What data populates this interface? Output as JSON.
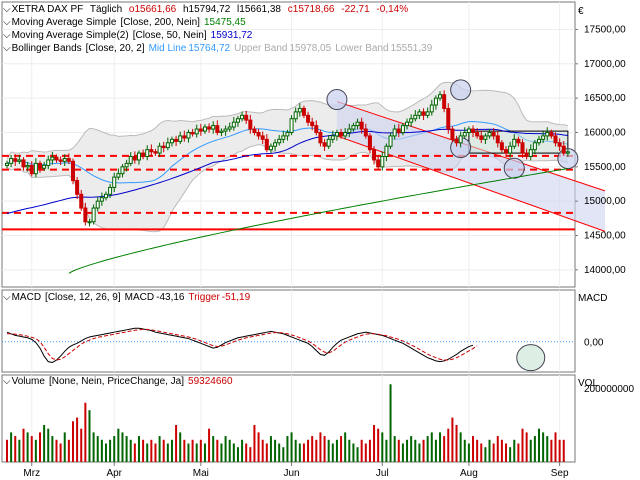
{
  "header": {
    "instrument": "XETRA DAX PF",
    "interval": "Täglich",
    "open_label": "o",
    "open": "15661,66",
    "high_label": "h",
    "high": "15794,72",
    "low_label": "l",
    "low": "15661,38",
    "close_label": "c",
    "close": "15718,66",
    "change": "-22,71",
    "change_pct": "-0,14%",
    "currency": "€"
  },
  "indicators": {
    "ma200": {
      "label": "Moving Average Simple",
      "params": "[Close, 200, Nein]",
      "value": "15475,45",
      "color": "#008000"
    },
    "ma50": {
      "label": "Moving Average Simple(2)",
      "params": "[Close, 50, Nein]",
      "value": "15931,72",
      "color": "#0000cc"
    },
    "bollinger": {
      "label": "Bollinger Bands",
      "params": "[Close, 20, 2]",
      "mid_label": "Mid Line",
      "mid": "15764,72",
      "upper_label": "Upper Band",
      "upper": "15978,05",
      "lower_label": "Lower Band",
      "lower": "15551,39",
      "mid_color": "#3399ff",
      "band_color": "#bbbbbb"
    }
  },
  "macd": {
    "label": "MACD",
    "params": "[Close, 12, 26, 9]",
    "name": "MACD",
    "value": "-43,16",
    "trigger_label": "Trigger",
    "trigger": "-51,19",
    "axis_title": "MACD",
    "axis_ticks": [
      {
        "v": 0,
        "label": "0,00"
      }
    ]
  },
  "volume": {
    "label": "Volume",
    "params": "[None, Nein, PriceChange, Ja]",
    "value": "59324660",
    "axis_title": "VOL",
    "axis_ticks": [
      {
        "v": 200000000,
        "label": "200000000"
      }
    ]
  },
  "colors": {
    "up": "#006400",
    "down": "#cc0000",
    "red_line": "#ff0000",
    "channel_fill": "#cdd3f0"
  },
  "chart_data": {
    "type": "candlestick",
    "price_axis": {
      "ylim": [
        13750,
        17900
      ],
      "ticks": [
        14000,
        14500,
        15000,
        15500,
        16000,
        16500,
        17000,
        17500
      ],
      "tick_labels": [
        "14000,00",
        "14500,00",
        "15000,00",
        "15500,00",
        "16000,00",
        "16500,00",
        "17000,00",
        "17500,00"
      ]
    },
    "x_labels": [
      {
        "label": "Mrz",
        "i": 6
      },
      {
        "label": "Apr",
        "i": 26
      },
      {
        "label": "Mai",
        "i": 47
      },
      {
        "label": "Jun",
        "i": 69
      },
      {
        "label": "Jul",
        "i": 91
      },
      {
        "label": "Aug",
        "i": 112
      },
      {
        "label": "Sep",
        "i": 134
      }
    ],
    "bar_count": 137,
    "close": [
      15550,
      15620,
      15580,
      15600,
      15500,
      15520,
      15400,
      15550,
      15480,
      15520,
      15600,
      15640,
      15600,
      15580,
      15620,
      15580,
      15300,
      15100,
      14900,
      14700,
      14700,
      14900,
      15000,
      15050,
      15100,
      15200,
      15350,
      15400,
      15500,
      15550,
      15650,
      15600,
      15700,
      15650,
      15750,
      15720,
      15700,
      15800,
      15780,
      15850,
      15900,
      15870,
      15950,
      15920,
      16000,
      15980,
      16050,
      16020,
      16080,
      16050,
      16100,
      16000,
      16020,
      16050,
      16080,
      16150,
      16200,
      16250,
      16180,
      16050,
      16000,
      15950,
      15900,
      15750,
      15800,
      15850,
      15900,
      15950,
      16000,
      16200,
      16300,
      16350,
      16250,
      16150,
      16100,
      16000,
      15850,
      15800,
      15900,
      15950,
      16000,
      15950,
      16000,
      16050,
      16100,
      16150,
      16050,
      15950,
      15750,
      15600,
      15500,
      15650,
      15800,
      15950,
      16050,
      16000,
      16100,
      16150,
      16200,
      16250,
      16300,
      16250,
      16300,
      16400,
      16500,
      16550,
      16350,
      16050,
      15900,
      15850,
      15950,
      16000,
      16050,
      16000,
      15950,
      15900,
      15950,
      16000,
      15950,
      15850,
      15750,
      15700,
      15800,
      15900,
      15850,
      15700,
      15650,
      15750,
      15850,
      15900,
      15950,
      16000,
      15950,
      15850,
      15800,
      15700,
      15718
    ],
    "ma200": {
      "start_index": 15,
      "start": 13950,
      "end": 15475
    },
    "ma50": {
      "start_index": 0,
      "start": 14820,
      "end": 15931
    },
    "bollinger_mid": {
      "last": 15764
    },
    "bollinger_upper": {
      "last": 15978
    },
    "bollinger_lower": {
      "last": 15551
    },
    "support_lines": [
      15660,
      15460,
      14830,
      14590
    ],
    "channel": {
      "upper": [
        [
          80,
          16450
        ],
        [
          145,
          15150
        ]
      ],
      "lower": [
        [
          80,
          15950
        ],
        [
          145,
          14560
        ]
      ]
    },
    "rectangle": {
      "from": 112,
      "to": 136,
      "top": 16020,
      "bottom": 15700
    },
    "circles": [
      {
        "i": 80,
        "v": 16480
      },
      {
        "i": 110,
        "v": 16620
      },
      {
        "i": 110,
        "v": 15780
      },
      {
        "i": 123,
        "v": 15480
      },
      {
        "i": 136,
        "v": 15620
      }
    ],
    "macd_axis": {
      "ylim": [
        -380,
        650
      ]
    },
    "macd_values": [
      120,
      100,
      80,
      70,
      60,
      50,
      30,
      -10,
      -80,
      -180,
      -250,
      -260,
      -230,
      -180,
      -120,
      -70,
      -40,
      -20,
      10,
      40,
      60,
      70,
      80,
      90,
      100,
      110,
      120,
      130,
      140,
      150,
      160,
      170,
      170,
      160,
      150,
      140,
      120,
      110,
      100,
      90,
      80,
      70,
      60,
      50,
      40,
      20,
      0,
      -20,
      -40,
      -60,
      -80,
      -70,
      -40,
      -10,
      10,
      30,
      50,
      60,
      70,
      80,
      90,
      100,
      110,
      120,
      130,
      120,
      110,
      100,
      80,
      60,
      40,
      20,
      0,
      -20,
      -60,
      -110,
      -160,
      -170,
      -130,
      -70,
      -20,
      20,
      40,
      60,
      80,
      100,
      110,
      120,
      110,
      100,
      90,
      80,
      60,
      40,
      20,
      0,
      -20,
      -50,
      -80,
      -110,
      -140,
      -170,
      -200,
      -220,
      -240,
      -250,
      -240,
      -220,
      -190,
      -160,
      -120,
      -90,
      -60,
      -43
    ],
    "trigger_values": [
      100,
      100,
      95,
      90,
      80,
      70,
      55,
      40,
      0,
      -70,
      -150,
      -210,
      -230,
      -220,
      -190,
      -150,
      -110,
      -70,
      -30,
      0,
      20,
      40,
      55,
      65,
      75,
      85,
      95,
      105,
      115,
      125,
      135,
      145,
      150,
      155,
      155,
      150,
      140,
      130,
      120,
      110,
      100,
      90,
      80,
      70,
      60,
      45,
      30,
      10,
      -10,
      -30,
      -50,
      -60,
      -55,
      -40,
      -20,
      0,
      20,
      35,
      50,
      60,
      70,
      80,
      90,
      100,
      110,
      115,
      115,
      110,
      100,
      85,
      70,
      50,
      30,
      10,
      -20,
      -60,
      -100,
      -130,
      -140,
      -120,
      -80,
      -40,
      -5,
      20,
      40,
      60,
      80,
      95,
      100,
      100,
      95,
      85,
      75,
      60,
      45,
      30,
      10,
      -15,
      -40,
      -65,
      -95,
      -125,
      -155,
      -180,
      -200,
      -220,
      -230,
      -230,
      -220,
      -200,
      -175,
      -145,
      -115,
      -85,
      -51
    ],
    "volume_axis": {
      "ylim": [
        0,
        235000000
      ]
    },
    "volume_values": [
      60,
      80,
      70,
      60,
      90,
      80,
      70,
      60,
      80,
      100,
      90,
      70,
      60,
      50,
      80,
      60,
      110,
      120,
      90,
      160,
      140,
      80,
      70,
      60,
      50,
      60,
      70,
      90,
      80,
      70,
      60,
      50,
      70,
      60,
      50,
      60,
      50,
      70,
      60,
      50,
      60,
      100,
      80,
      60,
      50,
      60,
      50,
      60,
      50,
      90,
      70,
      60,
      50,
      70,
      60,
      50,
      40,
      60,
      50,
      40,
      100,
      80,
      60,
      50,
      70,
      60,
      50,
      40,
      70,
      80,
      60,
      50,
      50,
      60,
      70,
      60,
      80,
      70,
      60,
      50,
      60,
      70,
      80,
      60,
      50,
      40,
      60,
      50,
      60,
      100,
      90,
      80,
      60,
      210,
      70,
      60,
      50,
      60,
      70,
      60,
      50,
      60,
      70,
      80,
      60,
      80,
      70,
      90,
      120,
      100,
      80,
      60,
      50,
      70,
      60,
      50,
      40,
      60,
      50,
      70,
      60,
      50,
      40,
      60,
      50,
      90,
      80,
      60,
      70,
      90,
      80,
      70,
      60,
      80,
      60,
      60
    ]
  }
}
